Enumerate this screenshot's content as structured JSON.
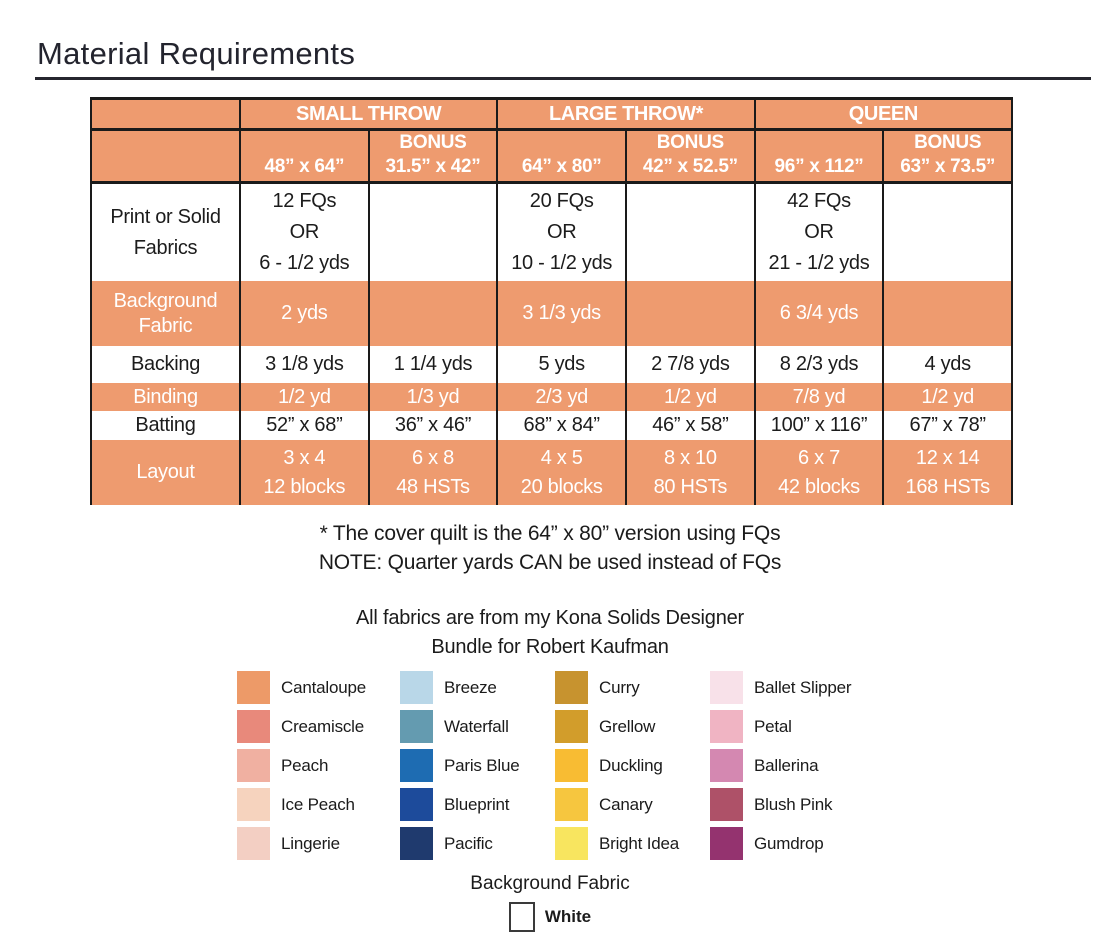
{
  "page": {
    "title": "Material Requirements"
  },
  "colors": {
    "table_orange": "#EE9B6F",
    "table_border": "#1A1A1A",
    "title_text": "#23242E"
  },
  "table": {
    "groups": [
      {
        "label": "SMALL THROW"
      },
      {
        "label": "LARGE THROW*"
      },
      {
        "label": "QUEEN"
      }
    ],
    "columns": [
      {
        "bonus": "",
        "size": "48” x 64”"
      },
      {
        "bonus": "BONUS",
        "size": "31.5” x 42”"
      },
      {
        "bonus": "",
        "size": "64” x 80”"
      },
      {
        "bonus": "BONUS",
        "size": "42” x 52.5”"
      },
      {
        "bonus": "",
        "size": "96” x 112”"
      },
      {
        "bonus": "BONUS",
        "size": "63” x 73.5”"
      }
    ],
    "rows": [
      {
        "label": "Print or Solid Fabrics",
        "values": [
          "12 FQs\nOR\n6 - 1/2 yds",
          "",
          "20 FQs\nOR\n10 - 1/2 yds",
          "",
          "42 FQs\nOR\n21 - 1/2 yds",
          ""
        ]
      },
      {
        "label": "Background Fabric",
        "values": [
          "2 yds",
          "",
          "3 1/3 yds",
          "",
          "6 3/4 yds",
          ""
        ]
      },
      {
        "label": "Backing",
        "values": [
          "3 1/8 yds",
          "1 1/4 yds",
          "5 yds",
          "2 7/8 yds",
          "8 2/3 yds",
          "4 yds"
        ]
      },
      {
        "label": "Binding",
        "values": [
          "1/2 yd",
          "1/3 yd",
          "2/3 yd",
          "1/2 yd",
          "7/8 yd",
          "1/2 yd"
        ]
      },
      {
        "label": "Batting",
        "values": [
          "52” x 68”",
          "36” x 46”",
          "68” x 84”",
          "46” x 58”",
          "100” x 116”",
          "67” x 78”"
        ]
      },
      {
        "label": "Layout",
        "values": [
          "3 x 4\n12 blocks",
          "6 x 8\n48 HSTs",
          "4 x 5\n20 blocks",
          "8 x 10\n80 HSTs",
          "6 x 7\n42 blocks",
          "12 x 14\n168 HSTs"
        ]
      }
    ]
  },
  "notes": {
    "line1": "* The cover quilt is the 64” x 80” version using FQs",
    "line2": "NOTE: Quarter yards CAN be used instead of FQs"
  },
  "fabrics": {
    "intro_line1": "All fabrics are from my Kona Solids Designer",
    "intro_line2": "Bundle for Robert Kaufman",
    "columns": [
      [
        {
          "name": "Cantaloupe",
          "color": "#ED9A68"
        },
        {
          "name": "Creamiscle",
          "color": "#E8897B"
        },
        {
          "name": "Peach",
          "color": "#F0B0A1"
        },
        {
          "name": "Ice Peach",
          "color": "#F6D3BE"
        },
        {
          "name": "Lingerie",
          "color": "#F3CFC3"
        }
      ],
      [
        {
          "name": "Breeze",
          "color": "#B9D7E8"
        },
        {
          "name": "Waterfall",
          "color": "#649BB0"
        },
        {
          "name": "Paris Blue",
          "color": "#1E6CB2"
        },
        {
          "name": "Blueprint",
          "color": "#1D4B9B"
        },
        {
          "name": "Pacific",
          "color": "#1F3A6E"
        }
      ],
      [
        {
          "name": "Curry",
          "color": "#C7932F"
        },
        {
          "name": "Grellow",
          "color": "#D29D2B"
        },
        {
          "name": "Duckling",
          "color": "#F8BC33"
        },
        {
          "name": "Canary",
          "color": "#F6C63F"
        },
        {
          "name": "Bright Idea",
          "color": "#F8E55F"
        }
      ],
      [
        {
          "name": "Ballet Slipper",
          "color": "#F8E1E9"
        },
        {
          "name": "Petal",
          "color": "#F0B4C3"
        },
        {
          "name": "Ballerina",
          "color": "#D488B1"
        },
        {
          "name": "Blush Pink",
          "color": "#AE5168"
        },
        {
          "name": "Gumdrop",
          "color": "#94336F"
        }
      ]
    ],
    "background": {
      "heading": "Background Fabric",
      "name": "White",
      "color": "#FFFFFF"
    }
  }
}
